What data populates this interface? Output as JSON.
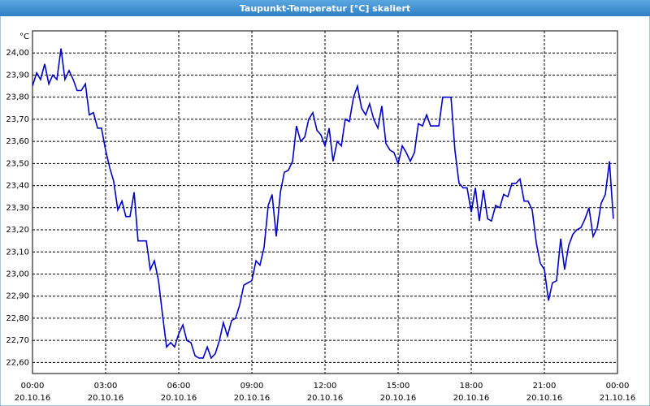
{
  "chart_data": {
    "type": "line",
    "title": "Taupunkt-Temperatur [°C] skaliert",
    "y_label": "°C",
    "x": [
      0,
      0.17,
      0.33,
      0.5,
      0.67,
      0.83,
      1,
      1.17,
      1.33,
      1.5,
      1.67,
      1.83,
      2,
      2.17,
      2.33,
      2.5,
      2.67,
      2.83,
      3,
      3.17,
      3.33,
      3.5,
      3.67,
      3.83,
      4,
      4.17,
      4.33,
      4.5,
      4.67,
      4.83,
      5,
      5.17,
      5.33,
      5.5,
      5.67,
      5.83,
      6,
      6.17,
      6.33,
      6.5,
      6.67,
      6.83,
      7,
      7.17,
      7.33,
      7.5,
      7.67,
      7.83,
      8,
      8.17,
      8.33,
      8.5,
      8.67,
      8.83,
      9,
      9.17,
      9.33,
      9.5,
      9.67,
      9.83,
      10,
      10.17,
      10.33,
      10.5,
      10.67,
      10.83,
      11,
      11.17,
      11.33,
      11.5,
      11.67,
      11.83,
      12,
      12.17,
      12.33,
      12.5,
      12.67,
      12.83,
      13,
      13.17,
      13.33,
      13.5,
      13.67,
      13.83,
      14,
      14.17,
      14.33,
      14.5,
      14.67,
      14.83,
      15,
      15.17,
      15.33,
      15.5,
      15.67,
      15.83,
      16,
      16.17,
      16.33,
      16.5,
      16.67,
      16.83,
      17,
      17.17,
      17.33,
      17.5,
      17.67,
      17.83,
      18,
      18.17,
      18.33,
      18.5,
      18.67,
      18.83,
      19,
      19.17,
      19.33,
      19.5,
      19.67,
      19.83,
      20,
      20.17,
      20.33,
      20.5,
      20.67,
      20.83,
      21,
      21.17,
      21.33,
      21.5,
      21.67,
      21.83,
      22,
      22.17,
      22.33,
      22.5,
      22.67,
      22.83,
      23,
      23.17,
      23.33,
      23.5,
      23.67,
      23.83
    ],
    "series": [
      {
        "color": "#0000c8",
        "values": [
          23.85,
          23.91,
          23.88,
          23.95,
          23.86,
          23.9,
          23.88,
          24.02,
          23.88,
          23.92,
          23.88,
          23.83,
          23.83,
          23.86,
          23.72,
          23.73,
          23.66,
          23.66,
          23.56,
          23.48,
          23.42,
          23.29,
          23.33,
          23.26,
          23.26,
          23.37,
          23.15,
          23.15,
          23.15,
          23.02,
          23.06,
          22.97,
          22.82,
          22.67,
          22.69,
          22.67,
          22.73,
          22.77,
          22.7,
          22.69,
          22.63,
          22.62,
          22.62,
          22.67,
          22.62,
          22.64,
          22.7,
          22.78,
          22.72,
          22.79,
          22.8,
          22.86,
          22.95,
          22.96,
          22.97,
          23.06,
          23.04,
          23.12,
          23.31,
          23.36,
          23.17,
          23.37,
          23.46,
          23.47,
          23.51,
          23.67,
          23.6,
          23.62,
          23.7,
          23.73,
          23.65,
          23.63,
          23.58,
          23.66,
          23.51,
          23.6,
          23.58,
          23.7,
          23.69,
          23.8,
          23.85,
          23.75,
          23.72,
          23.77,
          23.7,
          23.66,
          23.76,
          23.59,
          23.56,
          23.55,
          23.5,
          23.58,
          23.55,
          23.51,
          23.55,
          23.68,
          23.67,
          23.72,
          23.67,
          23.67,
          23.67,
          23.8,
          23.8,
          23.8,
          23.56,
          23.41,
          23.39,
          23.39,
          23.28,
          23.39,
          23.24,
          23.38,
          23.25,
          23.24,
          23.31,
          23.3,
          23.36,
          23.35,
          23.41,
          23.41,
          23.43,
          23.33,
          23.33,
          23.29,
          23.14,
          23.05,
          23.02,
          22.88,
          22.96,
          22.97,
          23.16,
          23.02,
          23.13,
          23.18,
          23.2,
          23.21,
          23.25,
          23.3,
          23.17,
          23.21,
          23.32,
          23.36,
          23.51,
          23.25
        ]
      }
    ],
    "xlim": [
      0,
      24
    ],
    "xticks": [
      {
        "value": 0,
        "label": "00:00"
      },
      {
        "value": 3,
        "label": "03:00"
      },
      {
        "value": 6,
        "label": "06:00"
      },
      {
        "value": 9,
        "label": "09:00"
      },
      {
        "value": 12,
        "label": "12:00"
      },
      {
        "value": 15,
        "label": "15:00"
      },
      {
        "value": 18,
        "label": "18:00"
      },
      {
        "value": 21,
        "label": "21:00"
      },
      {
        "value": 24,
        "label": "00:00"
      }
    ],
    "xtick_dates": [
      "20.10.16",
      "20.10.16",
      "20.10.16",
      "20.10.16",
      "20.10.16",
      "20.10.16",
      "20.10.16",
      "20.10.16",
      "21.10.16"
    ],
    "ylim": [
      22.55,
      24.1
    ],
    "yticks": [
      {
        "value": 22.6,
        "label": "22,60"
      },
      {
        "value": 22.7,
        "label": "22,70"
      },
      {
        "value": 22.8,
        "label": "22,80"
      },
      {
        "value": 22.9,
        "label": "22,90"
      },
      {
        "value": 23.0,
        "label": "23,00"
      },
      {
        "value": 23.1,
        "label": "23,10"
      },
      {
        "value": 23.2,
        "label": "23,20"
      },
      {
        "value": 23.3,
        "label": "23,30"
      },
      {
        "value": 23.4,
        "label": "23,40"
      },
      {
        "value": 23.5,
        "label": "23,50"
      },
      {
        "value": 23.6,
        "label": "23,60"
      },
      {
        "value": 23.7,
        "label": "23,70"
      },
      {
        "value": 23.8,
        "label": "23,80"
      },
      {
        "value": 23.9,
        "label": "23,90"
      },
      {
        "value": 24.0,
        "label": "24,00"
      }
    ],
    "grid": true
  }
}
